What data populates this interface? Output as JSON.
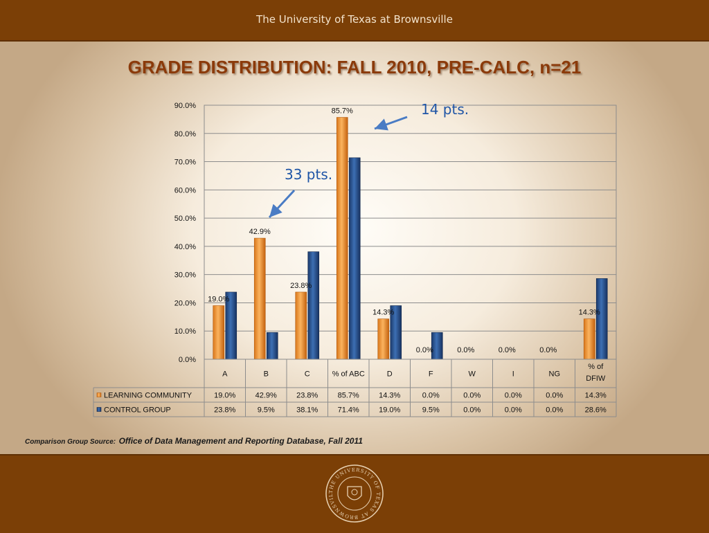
{
  "header": {
    "institution": "The University of Texas at Brownsville"
  },
  "title": "GRADE DISTRIBUTION: FALL 2010, PRE-CALC, n=21",
  "annotations": [
    {
      "text": "14 pts."
    },
    {
      "text": "33 pts."
    }
  ],
  "source": {
    "label": "Comparison Group Source:",
    "value": "Office of Data Management and Reporting Database, Fall 2011"
  },
  "seal": {
    "text": "THE UNIVERSITY OF TEXAS AT BROWNSVILLE"
  },
  "colors": {
    "learning": "#f5a04a",
    "control": "#2e5d9e",
    "bar_orange_dark": "#c86b14",
    "bar_blue_dark": "#1b3a6b"
  },
  "chart_data": {
    "type": "bar",
    "categories": [
      "A",
      "B",
      "C",
      "% of ABC",
      "D",
      "F",
      "W",
      "I",
      "NG",
      "% of DFIW"
    ],
    "series": [
      {
        "name": "LEARNING COMMUNITY",
        "values": [
          19.0,
          42.9,
          23.8,
          85.7,
          14.3,
          0.0,
          0.0,
          0.0,
          0.0,
          14.3
        ],
        "table_labels": [
          "19.0%",
          "42.9%",
          "23.8%",
          "85.7%",
          "14.3%",
          "0.0%",
          "0.0%",
          "0.0%",
          "0.0%",
          "14.3%"
        ]
      },
      {
        "name": "CONTROL GROUP",
        "values": [
          23.8,
          9.5,
          38.1,
          71.4,
          19.0,
          9.5,
          0.0,
          0.0,
          0.0,
          28.6
        ],
        "table_labels": [
          "23.8%",
          "9.5%",
          "38.1%",
          "71.4%",
          "19.0%",
          "9.5%",
          "0.0%",
          "0.0%",
          "0.0%",
          "28.6%"
        ]
      }
    ],
    "data_labels": [
      "19.0%",
      "42.9%",
      "23.8%",
      "85.7%",
      "14.3%",
      "0.0%",
      "0.0%",
      "0.0%",
      "0.0%",
      "14.3%"
    ],
    "yticks": [
      "0.0%",
      "10.0%",
      "20.0%",
      "30.0%",
      "40.0%",
      "50.0%",
      "60.0%",
      "70.0%",
      "80.0%",
      "90.0%"
    ],
    "ylim": [
      0,
      90
    ],
    "grid": true,
    "legend_placement": "table-left"
  }
}
